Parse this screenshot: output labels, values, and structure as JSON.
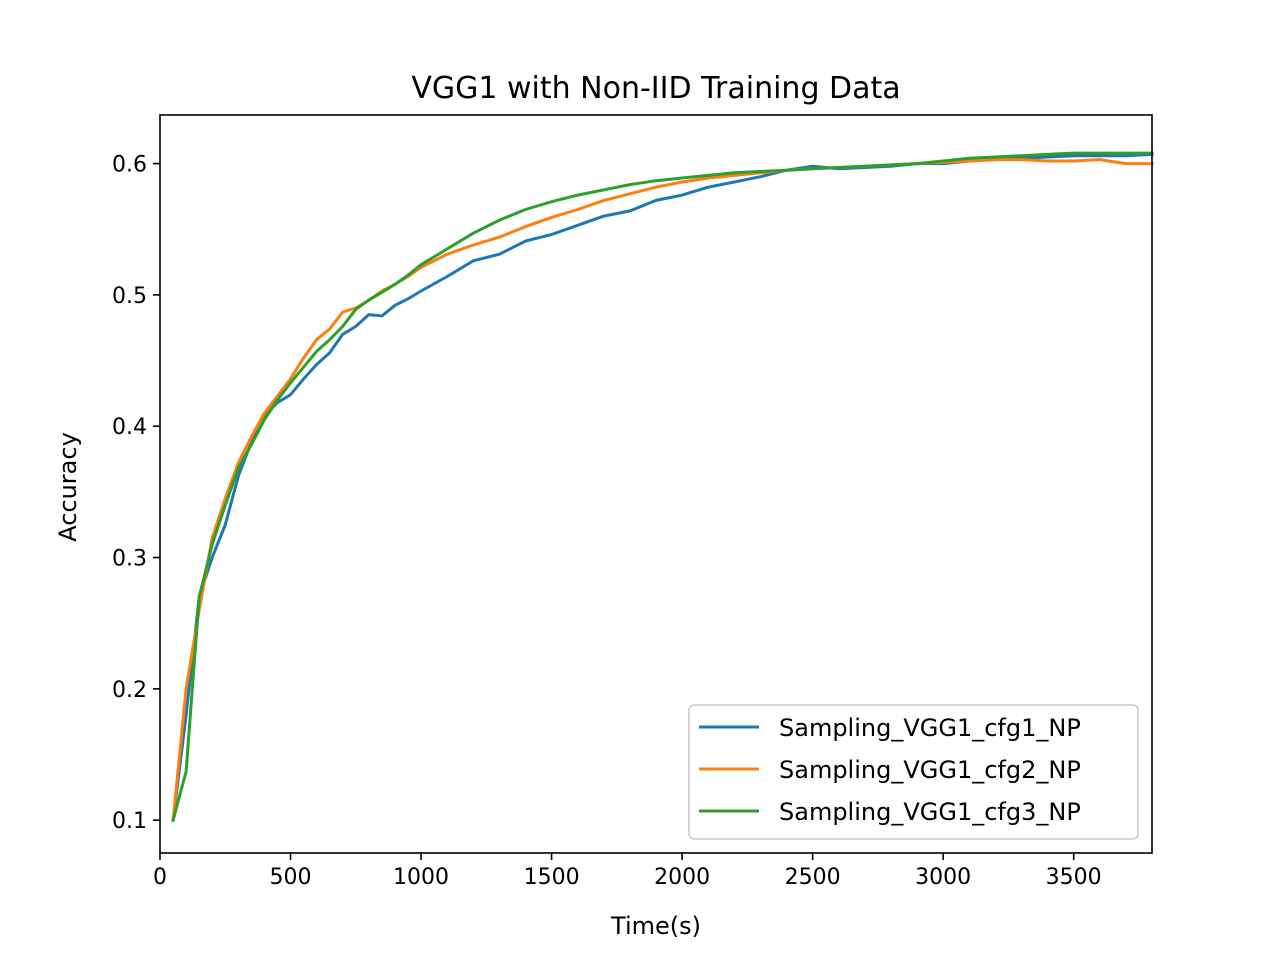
{
  "chart_data": {
    "type": "line",
    "title": "VGG1 with Non-IID Training Data",
    "xlabel": "Time(s)",
    "ylabel": "Accuracy",
    "xlim": [
      0,
      3800
    ],
    "ylim": [
      0.075,
      0.637
    ],
    "xticks": [
      0,
      500,
      1000,
      1500,
      2000,
      2500,
      3000,
      3500
    ],
    "yticks": [
      0.1,
      0.2,
      0.3,
      0.4,
      0.5,
      0.6
    ],
    "grid": false,
    "legend_position": "lower-right",
    "series": [
      {
        "name": "Sampling_VGG1_cfg1_NP",
        "color": "#1f77b4",
        "x": [
          50,
          100,
          150,
          200,
          250,
          300,
          350,
          400,
          450,
          500,
          550,
          600,
          650,
          700,
          750,
          800,
          850,
          900,
          950,
          1000,
          1100,
          1200,
          1300,
          1400,
          1500,
          1600,
          1700,
          1800,
          1900,
          2000,
          2100,
          2200,
          2300,
          2400,
          2500,
          2600,
          2700,
          2800,
          2900,
          3000,
          3100,
          3200,
          3300,
          3400,
          3500,
          3600,
          3700,
          3800
        ],
        "y": [
          0.1,
          0.18,
          0.27,
          0.3,
          0.325,
          0.362,
          0.388,
          0.408,
          0.418,
          0.424,
          0.436,
          0.447,
          0.456,
          0.47,
          0.476,
          0.485,
          0.484,
          0.492,
          0.497,
          0.503,
          0.514,
          0.526,
          0.531,
          0.541,
          0.546,
          0.553,
          0.56,
          0.564,
          0.572,
          0.576,
          0.582,
          0.586,
          0.59,
          0.595,
          0.598,
          0.596,
          0.597,
          0.598,
          0.6,
          0.6,
          0.602,
          0.603,
          0.604,
          0.605,
          0.606,
          0.606,
          0.606,
          0.607
        ]
      },
      {
        "name": "Sampling_VGG1_cfg2_NP",
        "color": "#ff7f0e",
        "x": [
          50,
          100,
          150,
          200,
          250,
          300,
          350,
          400,
          450,
          500,
          550,
          600,
          650,
          700,
          750,
          800,
          850,
          900,
          950,
          1000,
          1100,
          1200,
          1300,
          1400,
          1500,
          1600,
          1700,
          1800,
          1900,
          2000,
          2100,
          2200,
          2300,
          2400,
          2500,
          2600,
          2700,
          2800,
          2900,
          3000,
          3100,
          3200,
          3300,
          3400,
          3500,
          3600,
          3700,
          3800
        ],
        "y": [
          0.1,
          0.2,
          0.26,
          0.315,
          0.345,
          0.372,
          0.392,
          0.41,
          0.423,
          0.436,
          0.452,
          0.466,
          0.474,
          0.487,
          0.49,
          0.496,
          0.503,
          0.508,
          0.514,
          0.521,
          0.531,
          0.538,
          0.544,
          0.552,
          0.559,
          0.565,
          0.572,
          0.577,
          0.582,
          0.586,
          0.589,
          0.591,
          0.593,
          0.595,
          0.596,
          0.597,
          0.598,
          0.599,
          0.6,
          0.601,
          0.602,
          0.603,
          0.603,
          0.602,
          0.602,
          0.603,
          0.6,
          0.6
        ]
      },
      {
        "name": "Sampling_VGG1_cfg3_NP",
        "color": "#2ca02c",
        "x": [
          50,
          100,
          150,
          200,
          250,
          300,
          350,
          400,
          450,
          500,
          550,
          600,
          650,
          700,
          750,
          800,
          850,
          900,
          950,
          1000,
          1100,
          1200,
          1300,
          1400,
          1500,
          1600,
          1700,
          1800,
          1900,
          2000,
          2100,
          2200,
          2300,
          2400,
          2500,
          2600,
          2700,
          2800,
          2900,
          3000,
          3100,
          3200,
          3300,
          3400,
          3500,
          3600,
          3700,
          3800
        ],
        "y": [
          0.1,
          0.137,
          0.27,
          0.31,
          0.34,
          0.368,
          0.386,
          0.405,
          0.42,
          0.433,
          0.445,
          0.457,
          0.466,
          0.476,
          0.489,
          0.496,
          0.502,
          0.508,
          0.515,
          0.523,
          0.535,
          0.547,
          0.557,
          0.565,
          0.571,
          0.576,
          0.58,
          0.584,
          0.587,
          0.589,
          0.591,
          0.593,
          0.594,
          0.595,
          0.596,
          0.597,
          0.598,
          0.599,
          0.6,
          0.602,
          0.604,
          0.605,
          0.606,
          0.607,
          0.608,
          0.608,
          0.608,
          0.608
        ]
      }
    ]
  }
}
